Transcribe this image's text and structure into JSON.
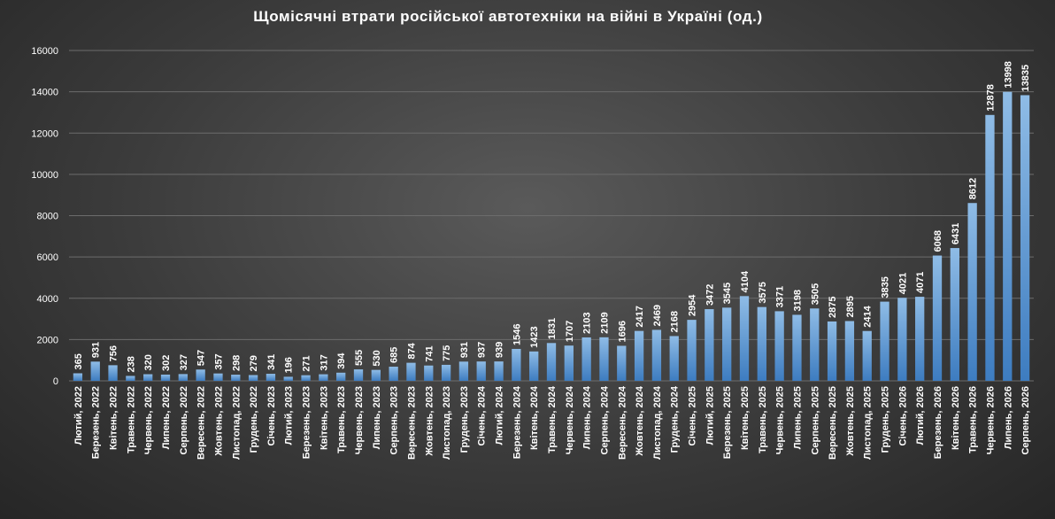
{
  "chart_data": {
    "type": "bar",
    "title": "Щомісячні втрати російської автотехніки на війні в Україні (од.)",
    "xlabel": "",
    "ylabel": "",
    "ylim": [
      0,
      16000
    ],
    "yticks": [
      0,
      2000,
      4000,
      6000,
      8000,
      10000,
      12000,
      14000,
      16000
    ],
    "grid": true,
    "legend": "none",
    "colors": {
      "bar_top": "#8fbce6",
      "bar_bottom": "#3d7cc0",
      "text": "#ffffff",
      "grid": "#6c6c6c"
    },
    "categories": [
      "Лютий, 2022",
      "Березень, 2022",
      "Квітень, 2022",
      "Травень, 2022",
      "Червень, 2022",
      "Липень, 2022",
      "Серпень, 2022",
      "Вересень, 2022",
      "Жовтень, 2022",
      "Листопад, 2022",
      "Грудень, 2022",
      "Січень, 2023",
      "Лютий, 2023",
      "Березень, 2023",
      "Квітень, 2023",
      "Травень, 2023",
      "Червень, 2023",
      "Липень, 2023",
      "Серпень, 2023",
      "Вересень, 2023",
      "Жовтень, 2023",
      "Листопад, 2023",
      "Грудень, 2023",
      "Січень, 2024",
      "Лютий, 2024",
      "Березень, 2024",
      "Квітень, 2024",
      "Травень, 2024",
      "Червень, 2024",
      "Липень, 2024",
      "Серпень, 2024",
      "Вересень, 2024",
      "Жовтень, 2024",
      "Листопад, 2024",
      "Грудень, 2024",
      "Січень, 2025",
      "Лютий, 2025",
      "Березень, 2025",
      "Квітень, 2025",
      "Травень, 2025",
      "Червень, 2025",
      "Липень, 2025",
      "Серпень, 2025",
      "Вересень, 2025",
      "Жовтень, 2025",
      "Листопад, 2025",
      "Грудень, 2025",
      "Січень, 2026",
      "Лютий, 2026",
      "Березень, 2026",
      "Квітень, 2026",
      "Травень, 2026",
      "Червень, 2026",
      "Липень, 2026",
      "Серпень, 2026"
    ],
    "values": [
      365,
      931,
      756,
      238,
      320,
      302,
      327,
      547,
      357,
      298,
      279,
      341,
      196,
      271,
      317,
      394,
      555,
      530,
      685,
      874,
      741,
      775,
      931,
      937,
      939,
      1546,
      1423,
      1831,
      1707,
      2103,
      2109,
      1696,
      2417,
      2469,
      2168,
      2954,
      3472,
      3545,
      4104,
      3575,
      3371,
      3198,
      3505,
      2875,
      2895,
      2414,
      3835,
      4021,
      4071,
      6068,
      6431,
      8612,
      12878,
      13998,
      13835
    ]
  }
}
